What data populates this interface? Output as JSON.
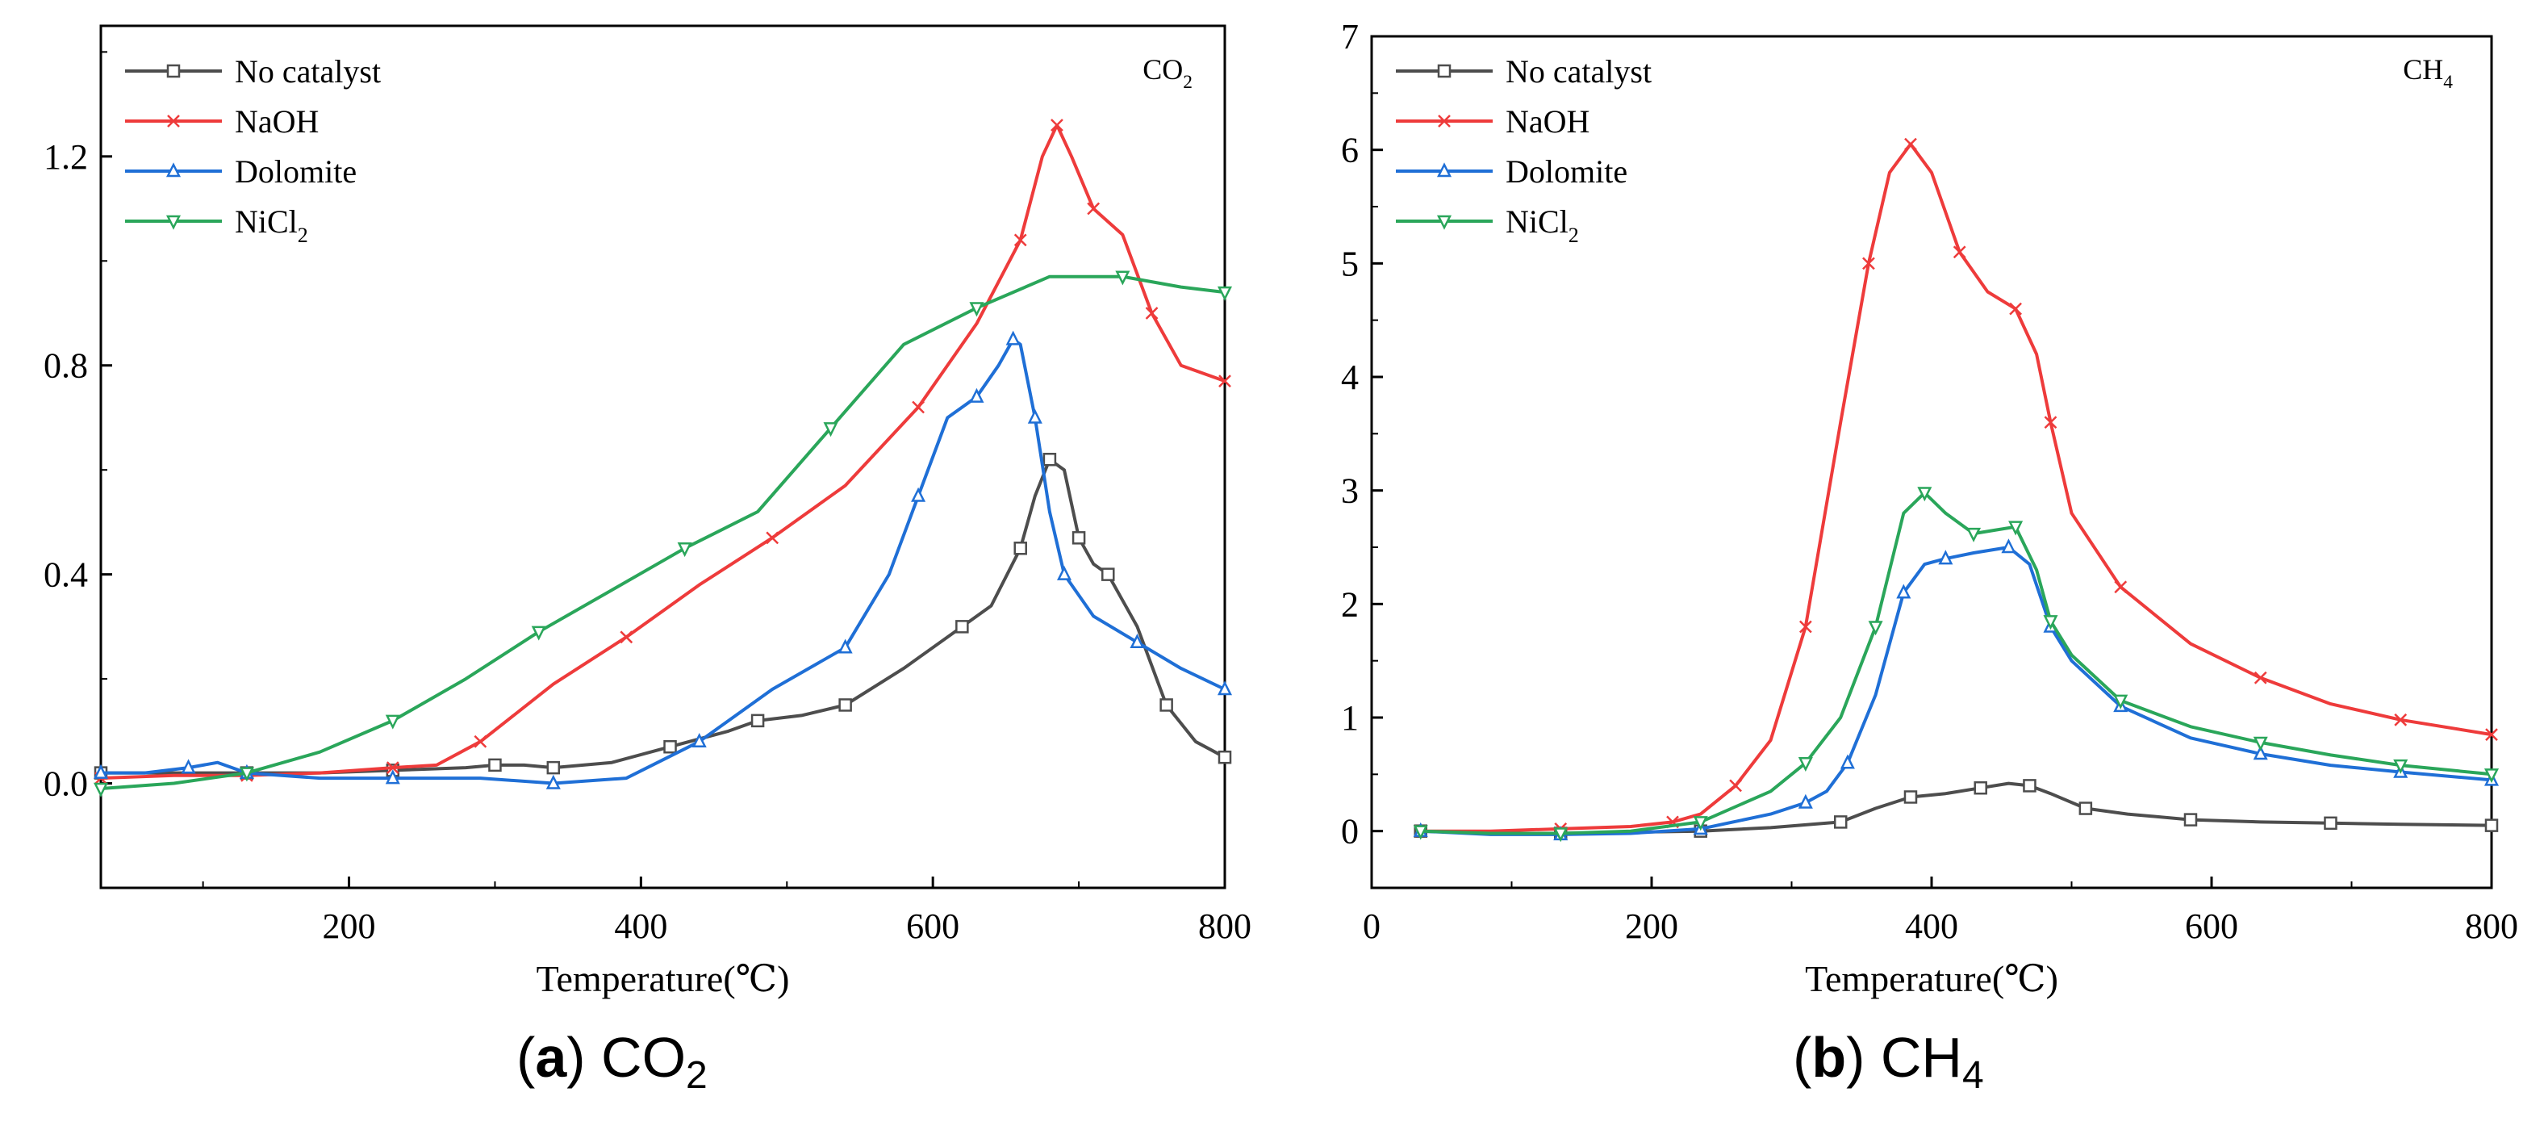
{
  "colors": {
    "no_catalyst": "#4d4d4d",
    "naoh": "#ee3b3b",
    "dolomite": "#1f6fd6",
    "nicl2": "#2aa65a"
  },
  "captions": [
    {
      "letter": "a",
      "open": "(",
      "close": ")",
      "text": "CO",
      "subscript": "2"
    },
    {
      "letter": "b",
      "open": "(",
      "close": ")",
      "text": "CH",
      "subscript": "4"
    }
  ],
  "chart_data": [
    {
      "type": "line",
      "title": "CO2",
      "title_main": "CO",
      "title_sub": "2",
      "xlabel": "Temperature(℃)",
      "ylabel": "",
      "xlim": [
        30,
        800
      ],
      "ylim": [
        -0.2,
        1.45
      ],
      "xticks": [
        200,
        400,
        600,
        800
      ],
      "xtick_labels": [
        "200",
        "400",
        "600",
        "800"
      ],
      "yticks": [
        0.0,
        0.4,
        0.8,
        1.2
      ],
      "ytick_labels": [
        "0.0",
        "0.4",
        "0.8",
        "1.2"
      ],
      "grid": false,
      "legend_position": "top-left",
      "series": [
        {
          "name": "No catalyst",
          "label_main": "No catalyst",
          "label_sub": "",
          "color_key": "no_catalyst",
          "marker": "square",
          "x": [
            30,
            80,
            130,
            180,
            230,
            280,
            300,
            320,
            340,
            380,
            420,
            460,
            480,
            510,
            540,
            580,
            620,
            640,
            660,
            670,
            680,
            690,
            700,
            710,
            720,
            740,
            760,
            780,
            800
          ],
          "y": [
            0.02,
            0.02,
            0.02,
            0.02,
            0.025,
            0.03,
            0.035,
            0.035,
            0.03,
            0.04,
            0.07,
            0.1,
            0.12,
            0.13,
            0.15,
            0.22,
            0.3,
            0.34,
            0.45,
            0.55,
            0.62,
            0.6,
            0.47,
            0.42,
            0.4,
            0.3,
            0.15,
            0.08,
            0.05
          ]
        },
        {
          "name": "NaOH",
          "label_main": "NaOH",
          "label_sub": "",
          "color_key": "naoh",
          "marker": "x",
          "x": [
            30,
            80,
            130,
            180,
            230,
            260,
            290,
            340,
            390,
            440,
            490,
            540,
            590,
            630,
            660,
            675,
            685,
            695,
            710,
            730,
            750,
            770,
            800
          ],
          "y": [
            0.01,
            0.015,
            0.015,
            0.02,
            0.03,
            0.035,
            0.08,
            0.19,
            0.28,
            0.38,
            0.47,
            0.57,
            0.72,
            0.88,
            1.04,
            1.2,
            1.26,
            1.2,
            1.1,
            1.05,
            0.9,
            0.8,
            0.77
          ]
        },
        {
          "name": "Dolomite",
          "label_main": "Dolomite",
          "label_sub": "",
          "color_key": "dolomite",
          "marker": "triangle",
          "x": [
            30,
            60,
            90,
            110,
            130,
            180,
            230,
            290,
            340,
            390,
            440,
            490,
            540,
            570,
            590,
            610,
            630,
            645,
            655,
            660,
            670,
            680,
            690,
            710,
            740,
            770,
            800
          ],
          "y": [
            0.02,
            0.02,
            0.03,
            0.04,
            0.02,
            0.01,
            0.01,
            0.01,
            0.0,
            0.01,
            0.08,
            0.18,
            0.26,
            0.4,
            0.55,
            0.7,
            0.74,
            0.8,
            0.85,
            0.84,
            0.7,
            0.52,
            0.4,
            0.32,
            0.27,
            0.22,
            0.18
          ]
        },
        {
          "name": "NiCl2",
          "label_main": "NiCl",
          "label_sub": "2",
          "color_key": "nicl2",
          "marker": "down-triangle",
          "x": [
            30,
            80,
            130,
            180,
            230,
            280,
            330,
            380,
            430,
            480,
            530,
            580,
            630,
            680,
            730,
            770,
            800
          ],
          "y": [
            -0.01,
            0.0,
            0.02,
            0.06,
            0.12,
            0.2,
            0.29,
            0.37,
            0.45,
            0.52,
            0.68,
            0.84,
            0.91,
            0.97,
            0.97,
            0.95,
            0.94
          ]
        }
      ]
    },
    {
      "type": "line",
      "title": "CH4",
      "title_main": "CH",
      "title_sub": "4",
      "xlabel": "Temperature(℃)",
      "ylabel": "",
      "xlim": [
        0,
        800
      ],
      "ylim": [
        -0.5,
        7
      ],
      "xticks": [
        0,
        200,
        400,
        600,
        800
      ],
      "xtick_labels": [
        "0",
        "200",
        "400",
        "600",
        "800"
      ],
      "yticks": [
        0,
        1,
        2,
        3,
        4,
        5,
        6,
        7
      ],
      "ytick_labels": [
        "0",
        "1",
        "2",
        "3",
        "4",
        "5",
        "6",
        "7"
      ],
      "grid": false,
      "legend_position": "top-left",
      "series": [
        {
          "name": "No catalyst",
          "label_main": "No catalyst",
          "label_sub": "",
          "color_key": "no_catalyst",
          "marker": "square",
          "x": [
            35,
            85,
            135,
            185,
            235,
            285,
            335,
            360,
            385,
            410,
            435,
            455,
            470,
            485,
            510,
            540,
            585,
            635,
            685,
            735,
            800
          ],
          "y": [
            0,
            -0.02,
            -0.02,
            -0.01,
            0.0,
            0.03,
            0.08,
            0.2,
            0.3,
            0.33,
            0.38,
            0.42,
            0.4,
            0.33,
            0.2,
            0.15,
            0.1,
            0.08,
            0.07,
            0.06,
            0.05
          ]
        },
        {
          "name": "NaOH",
          "label_main": "NaOH",
          "label_sub": "",
          "color_key": "naoh",
          "marker": "x",
          "x": [
            35,
            85,
            135,
            185,
            215,
            235,
            260,
            285,
            310,
            335,
            355,
            370,
            385,
            400,
            420,
            440,
            460,
            475,
            485,
            500,
            535,
            585,
            635,
            685,
            735,
            800
          ],
          "y": [
            0,
            0.0,
            0.02,
            0.04,
            0.08,
            0.15,
            0.4,
            0.8,
            1.8,
            3.6,
            5.0,
            5.8,
            6.05,
            5.8,
            5.1,
            4.75,
            4.6,
            4.2,
            3.6,
            2.8,
            2.15,
            1.65,
            1.35,
            1.12,
            0.98,
            0.85
          ]
        },
        {
          "name": "Dolomite",
          "label_main": "Dolomite",
          "label_sub": "",
          "color_key": "dolomite",
          "marker": "triangle",
          "x": [
            35,
            85,
            135,
            185,
            235,
            285,
            310,
            325,
            340,
            360,
            380,
            395,
            410,
            430,
            455,
            470,
            485,
            500,
            535,
            585,
            635,
            685,
            735,
            800
          ],
          "y": [
            0,
            -0.03,
            -0.03,
            -0.02,
            0.02,
            0.15,
            0.25,
            0.35,
            0.6,
            1.2,
            2.1,
            2.35,
            2.4,
            2.45,
            2.5,
            2.35,
            1.8,
            1.5,
            1.1,
            0.82,
            0.68,
            0.58,
            0.52,
            0.45
          ]
        },
        {
          "name": "NiCl2",
          "label_main": "NiCl",
          "label_sub": "2",
          "color_key": "nicl2",
          "marker": "down-triangle",
          "x": [
            35,
            85,
            135,
            185,
            235,
            285,
            310,
            335,
            360,
            380,
            395,
            410,
            430,
            445,
            460,
            475,
            485,
            500,
            535,
            585,
            635,
            685,
            735,
            800
          ],
          "y": [
            0,
            -0.02,
            -0.02,
            0.0,
            0.08,
            0.35,
            0.6,
            1.0,
            1.8,
            2.8,
            2.98,
            2.8,
            2.62,
            2.65,
            2.68,
            2.3,
            1.85,
            1.55,
            1.15,
            0.92,
            0.78,
            0.67,
            0.58,
            0.5
          ]
        }
      ]
    }
  ]
}
